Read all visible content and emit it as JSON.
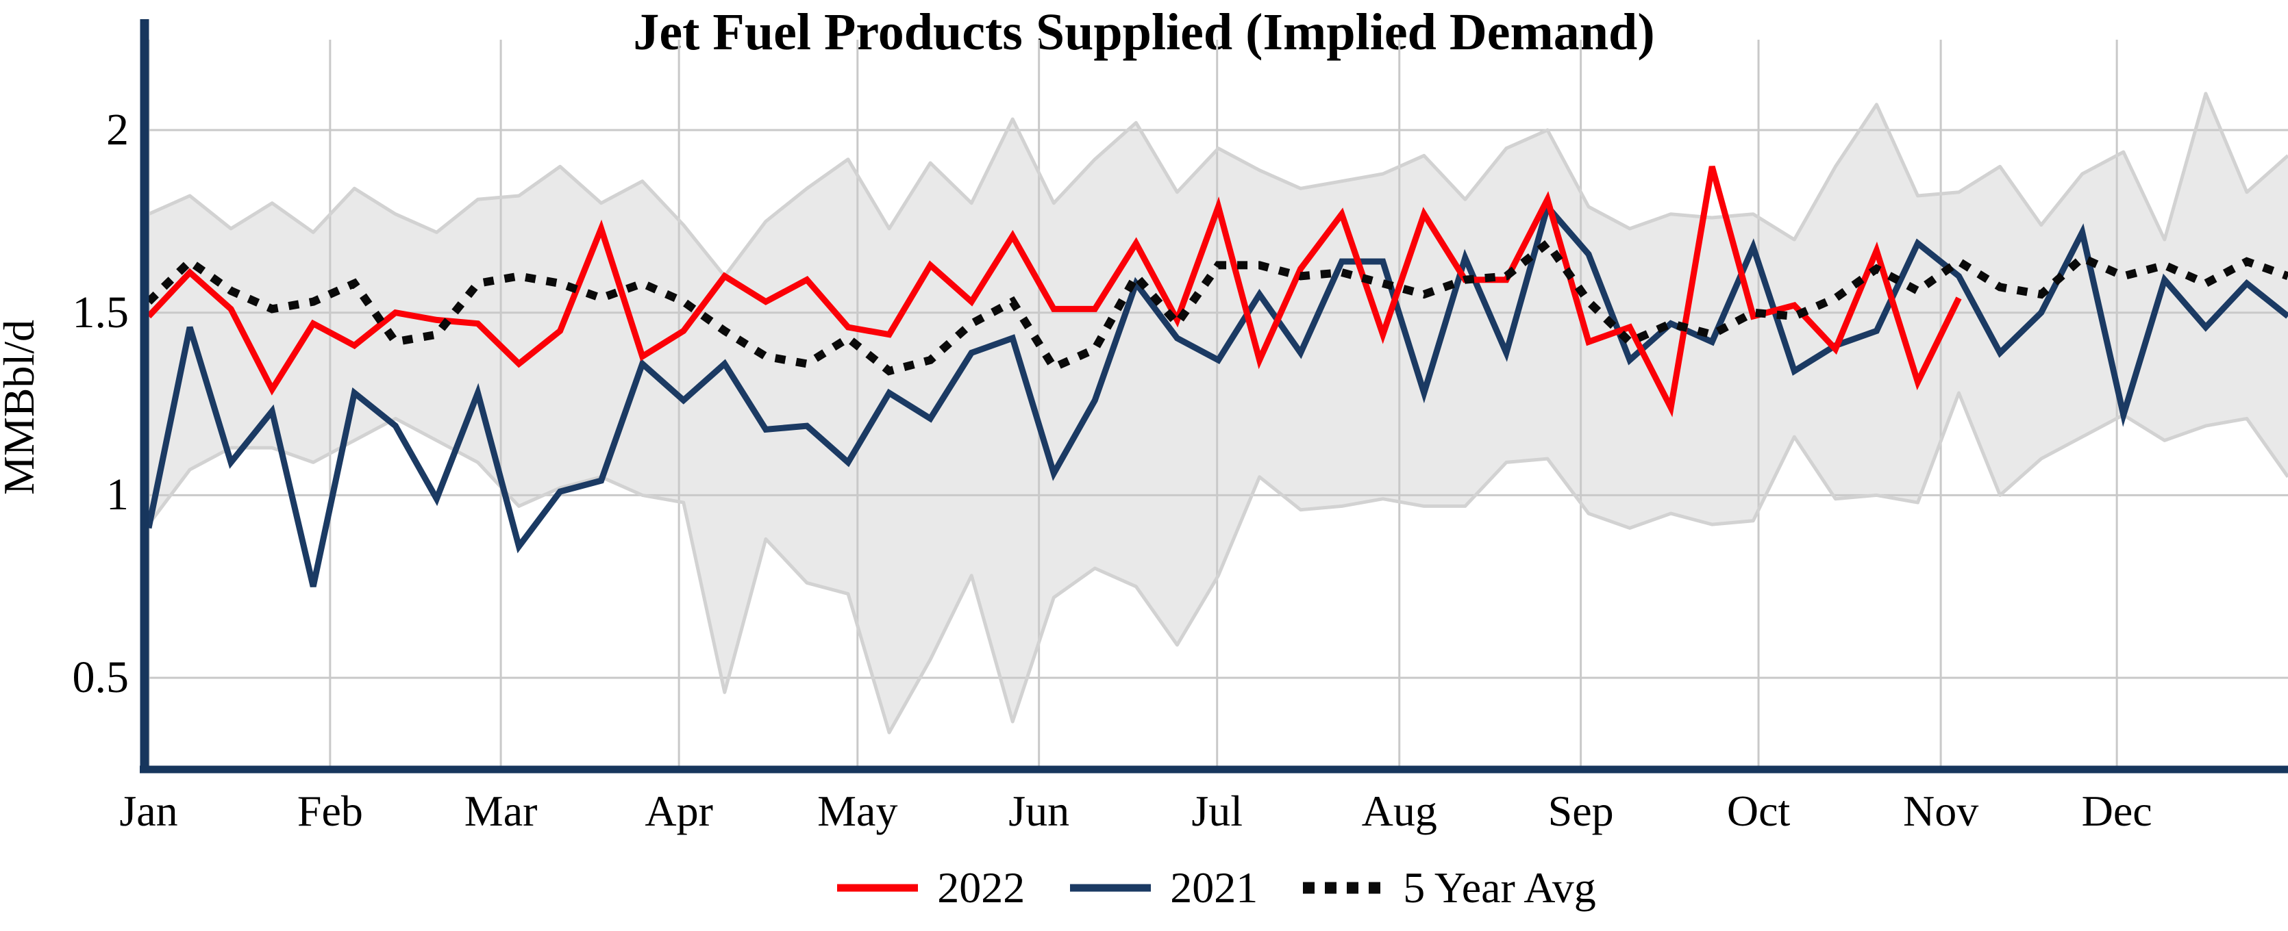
{
  "chart_data": {
    "type": "line",
    "title": "Jet Fuel Products Supplied (Implied Demand)",
    "ylabel": "MMBbl/d",
    "xlabel": "",
    "x_unit": "week_of_year",
    "n_weeks": 53,
    "yticks": [
      2,
      1.5,
      1,
      0.5
    ],
    "ylim_visible": [
      0.25,
      2.3
    ],
    "grid": true,
    "legend_position": "bottom-center",
    "month_ticks": [
      {
        "label": "Jan",
        "week": 1.0
      },
      {
        "label": "Feb",
        "week": 5.41
      },
      {
        "label": "Mar",
        "week": 9.56
      },
      {
        "label": "Apr",
        "week": 13.89
      },
      {
        "label": "May",
        "week": 18.23
      },
      {
        "label": "Jun",
        "week": 22.64
      },
      {
        "label": "Jul",
        "week": 26.97
      },
      {
        "label": "Aug",
        "week": 31.4
      },
      {
        "label": "Sep",
        "week": 35.81
      },
      {
        "label": "Oct",
        "week": 40.13
      },
      {
        "label": "Nov",
        "week": 44.56
      },
      {
        "label": "Dec",
        "week": 48.84
      }
    ],
    "series": [
      {
        "name": "2022",
        "color": "#fb0007",
        "style": "solid",
        "values": [
          1.49,
          1.61,
          1.51,
          1.29,
          1.47,
          1.41,
          1.5,
          1.48,
          1.47,
          1.36,
          1.45,
          1.73,
          1.38,
          1.45,
          1.6,
          1.53,
          1.59,
          1.46,
          1.44,
          1.63,
          1.53,
          1.71,
          1.51,
          1.51,
          1.69,
          1.48,
          1.79,
          1.37,
          1.62,
          1.77,
          1.44,
          1.77,
          1.59,
          1.59,
          1.81,
          1.42,
          1.46,
          1.24,
          1.9,
          1.49,
          1.52,
          1.4,
          1.67,
          1.31,
          1.54
        ]
      },
      {
        "name": "2021",
        "color": "#1b3a63",
        "style": "solid",
        "values": [
          0.91,
          1.46,
          1.09,
          1.23,
          0.75,
          1.28,
          1.19,
          0.99,
          1.28,
          0.86,
          1.01,
          1.04,
          1.36,
          1.26,
          1.36,
          1.18,
          1.19,
          1.09,
          1.28,
          1.21,
          1.39,
          1.43,
          1.06,
          1.26,
          1.58,
          1.43,
          1.37,
          1.55,
          1.39,
          1.64,
          1.64,
          1.28,
          1.65,
          1.39,
          1.79,
          1.66,
          1.37,
          1.47,
          1.42,
          1.68,
          1.34,
          1.41,
          1.45,
          1.69,
          1.6,
          1.39,
          1.5,
          1.72,
          1.22,
          1.59,
          1.46,
          1.58,
          1.49
        ]
      },
      {
        "name": "5 Year Avg",
        "color": "#0a0a0a",
        "style": "dotted",
        "values": [
          1.53,
          1.64,
          1.56,
          1.51,
          1.53,
          1.58,
          1.42,
          1.44,
          1.58,
          1.6,
          1.58,
          1.54,
          1.58,
          1.53,
          1.45,
          1.38,
          1.36,
          1.43,
          1.34,
          1.37,
          1.47,
          1.53,
          1.35,
          1.4,
          1.6,
          1.47,
          1.63,
          1.63,
          1.6,
          1.61,
          1.58,
          1.55,
          1.59,
          1.6,
          1.69,
          1.53,
          1.42,
          1.47,
          1.44,
          1.5,
          1.49,
          1.54,
          1.62,
          1.56,
          1.64,
          1.57,
          1.55,
          1.65,
          1.6,
          1.63,
          1.58,
          1.64,
          1.6
        ]
      }
    ],
    "band": {
      "name": "5-year min-max range",
      "fill": "#e9e9e9",
      "edge_color": "#d2d2d2",
      "max": [
        1.77,
        1.82,
        1.73,
        1.8,
        1.72,
        1.84,
        1.77,
        1.72,
        1.81,
        1.82,
        1.9,
        1.8,
        1.86,
        1.74,
        1.6,
        1.75,
        1.84,
        1.92,
        1.73,
        1.91,
        1.8,
        2.03,
        1.8,
        1.92,
        2.02,
        1.83,
        1.95,
        1.89,
        1.84,
        1.86,
        1.88,
        1.93,
        1.81,
        1.95,
        2.0,
        1.79,
        1.73,
        1.77,
        1.76,
        1.77,
        1.7,
        1.9,
        2.07,
        1.82,
        1.83,
        1.9,
        1.74,
        1.88,
        1.94,
        1.7,
        2.1,
        1.83,
        1.93
      ],
      "min": [
        0.92,
        1.07,
        1.13,
        1.13,
        1.09,
        1.15,
        1.21,
        1.15,
        1.09,
        0.97,
        1.02,
        1.05,
        1.0,
        0.98,
        0.46,
        0.88,
        0.76,
        0.73,
        0.35,
        0.55,
        0.78,
        0.38,
        0.72,
        0.8,
        0.75,
        0.59,
        0.78,
        1.05,
        0.96,
        0.97,
        0.99,
        0.97,
        0.97,
        1.09,
        1.1,
        0.95,
        0.91,
        0.95,
        0.92,
        0.93,
        1.16,
        0.99,
        1.0,
        0.98,
        1.28,
        1.0,
        1.1,
        1.16,
        1.22,
        1.15,
        1.19,
        1.21,
        1.05
      ]
    },
    "colors": {
      "axis": "#17365d",
      "grid": "#c9c9c9"
    }
  }
}
